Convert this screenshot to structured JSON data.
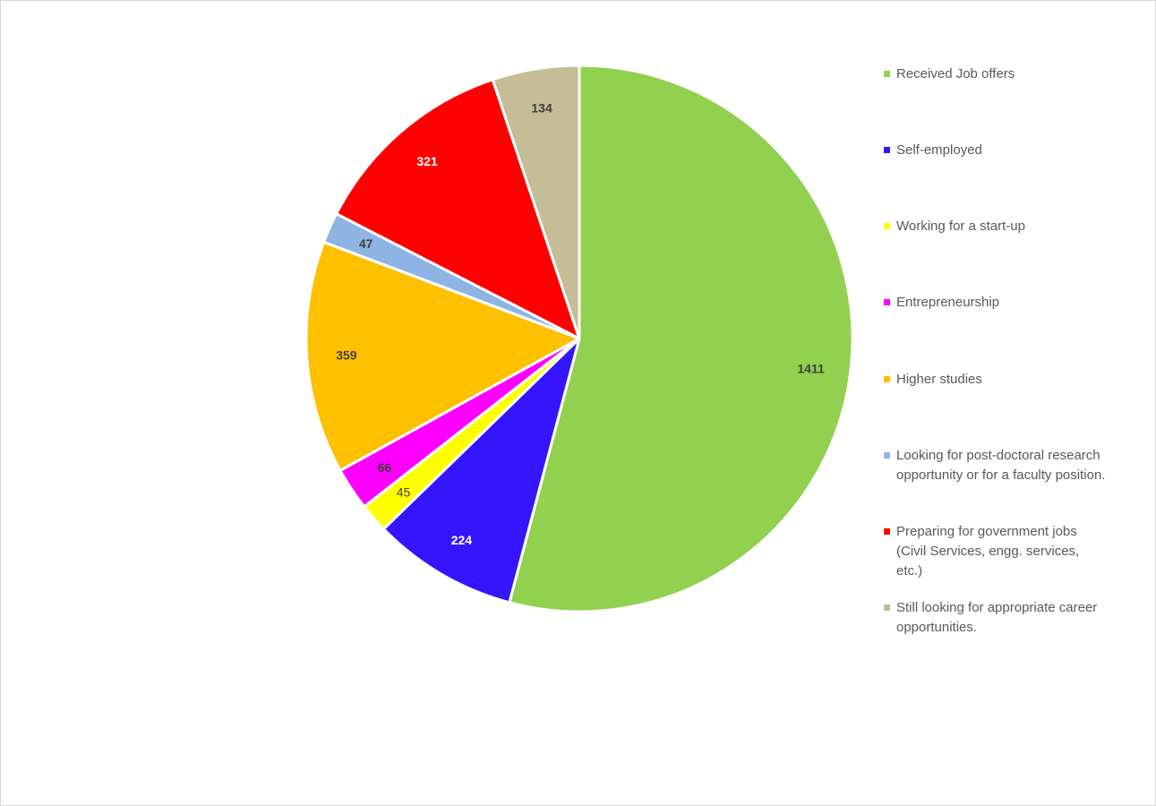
{
  "chart_data": {
    "type": "pie",
    "title": "",
    "start_angle_deg": 0,
    "direction": "clockwise",
    "legend_position": "right",
    "slices": [
      {
        "label": "Received Job offers",
        "value": 1411,
        "color": "#92d050",
        "label_color": "#404040"
      },
      {
        "label": "Self-employed",
        "value": 224,
        "color": "#3516fc",
        "label_color": "#ffffff"
      },
      {
        "label": "Working for a start-up",
        "value": 45,
        "color": "#ffff00",
        "label_color": "#404040"
      },
      {
        "label": "Entrepreneurship",
        "value": 66,
        "color": "#ff00ff",
        "label_color": "#404040"
      },
      {
        "label": "Higher studies",
        "value": 359,
        "color": "#ffc000",
        "label_color": "#404040"
      },
      {
        "label": "Looking for post-doctoral research opportunity or for a faculty position.",
        "value": 47,
        "color": "#8eb4e3",
        "label_color": "#404040"
      },
      {
        "label": "Preparing for government jobs (Civil Services, engg. services, etc.)",
        "value": 321,
        "color": "#ff0000",
        "label_color": "#ffffff"
      },
      {
        "label": "Still looking for appropriate career opportunities.",
        "value": 134,
        "color": "#c4bd97",
        "label_color": "#404040"
      }
    ]
  }
}
